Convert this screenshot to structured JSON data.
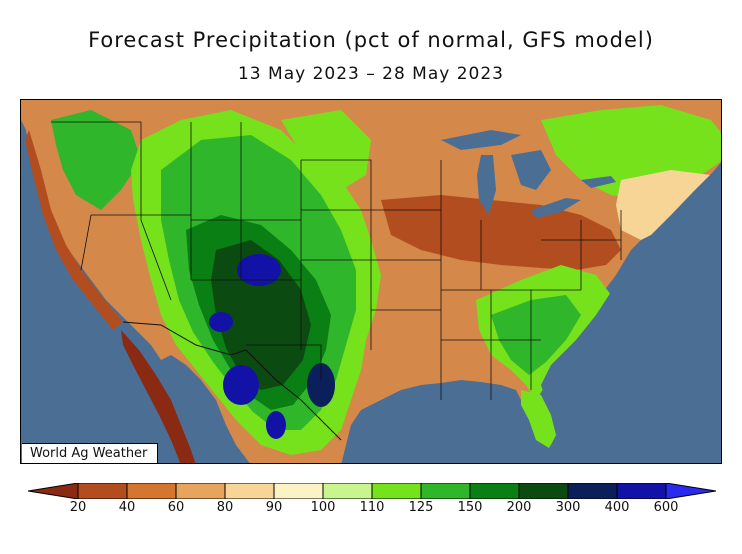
{
  "header": {
    "title": "Forecast Precipitation (pct of normal, GFS model)",
    "date_range": "13 May 2023 – 28 May 2023"
  },
  "map": {
    "credit": "World Ag Weather",
    "ocean_color": "#4b6f94",
    "land_default_color": "#d4884a"
  },
  "legend": {
    "levels": [
      "20",
      "40",
      "60",
      "80",
      "90",
      "100",
      "110",
      "125",
      "150",
      "200",
      "300",
      "400",
      "600"
    ],
    "colors": [
      "#8b2a12",
      "#b24d1f",
      "#d4762f",
      "#e7a45f",
      "#f6d596",
      "#fbf3c4",
      "#c8f58e",
      "#76e21c",
      "#2fb62b",
      "#0a7f14",
      "#0b4b12",
      "#0b1f5a",
      "#1212a6",
      "#2a2af0"
    ]
  }
}
